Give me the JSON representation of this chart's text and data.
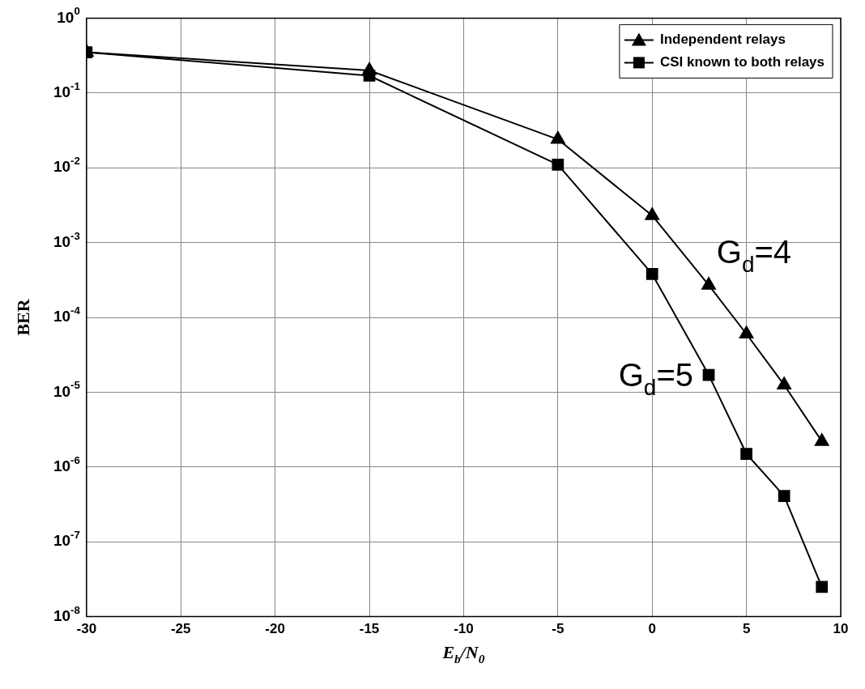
{
  "chart_data": {
    "type": "line",
    "xlabel": "E$_{b}$/N$_{0}$",
    "ylabel": "BER",
    "x": [
      -30,
      -15,
      -5,
      0,
      3,
      5,
      7,
      9
    ],
    "series": [
      {
        "name": "Independent relays",
        "color": "#000000",
        "marker": "triangle",
        "values": [
          0.35,
          0.2,
          0.024,
          0.0023,
          0.00027,
          6e-05,
          1.25e-05,
          2.2e-06
        ]
      },
      {
        "name": "CSI known to both relays",
        "color": "#000000",
        "marker": "square",
        "values": [
          0.35,
          0.17,
          0.011,
          0.00038,
          1.7e-05,
          1.5e-06,
          4.1e-07,
          2.5e-08
        ]
      }
    ],
    "xlim": [
      -30,
      10
    ],
    "xticks": [
      -30,
      -25,
      -20,
      -15,
      -10,
      -5,
      0,
      5,
      10
    ],
    "ylim": [
      1e-08,
      1
    ],
    "yticks": [
      {
        "value": 1e-08,
        "label": "10$^{-8}$"
      },
      {
        "value": 1e-07,
        "label": "10$^{-7}$"
      },
      {
        "value": 1e-06,
        "label": "10$^{-6}$"
      },
      {
        "value": 1e-05,
        "label": "10$^{-5}$"
      },
      {
        "value": 0.0001,
        "label": "10$^{-4}$"
      },
      {
        "value": 0.001,
        "label": "10$^{-3}$"
      },
      {
        "value": 0.01,
        "label": "10$^{-2}$"
      },
      {
        "value": 0.1,
        "label": "10$^{-1}$"
      },
      {
        "value": 1,
        "label": "10$^{0}$"
      }
    ],
    "log": "y",
    "grid": true,
    "legend": "top right",
    "line_style": "solid",
    "annotations": [
      "G$_{d}$=4",
      "G$_{d}$=5"
    ]
  }
}
